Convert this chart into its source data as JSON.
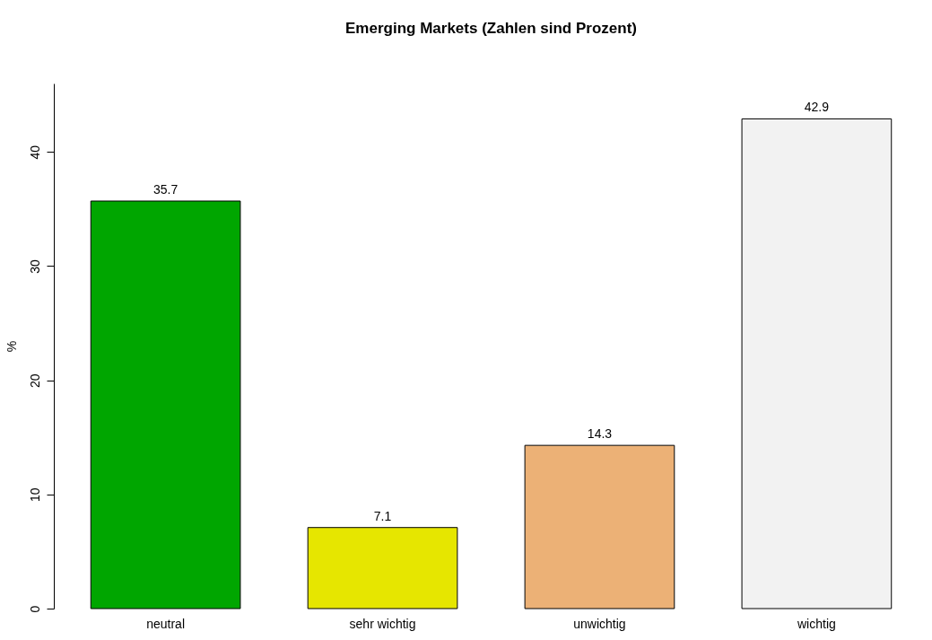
{
  "chart_data": {
    "type": "bar",
    "title": "Emerging Markets (Zahlen sind Prozent)",
    "ylabel": "%",
    "categories": [
      "neutral",
      "sehr wichtig",
      "unwichtig",
      "wichtig"
    ],
    "values": [
      35.7,
      7.1,
      14.3,
      42.9
    ],
    "colors": [
      "#00a600",
      "#e6e600",
      "#ecb176",
      "#f2f2f2"
    ],
    "ylim": [
      0,
      46
    ],
    "yticks": [
      0,
      10,
      20,
      30,
      40
    ],
    "grid": false,
    "data_labels": true
  }
}
